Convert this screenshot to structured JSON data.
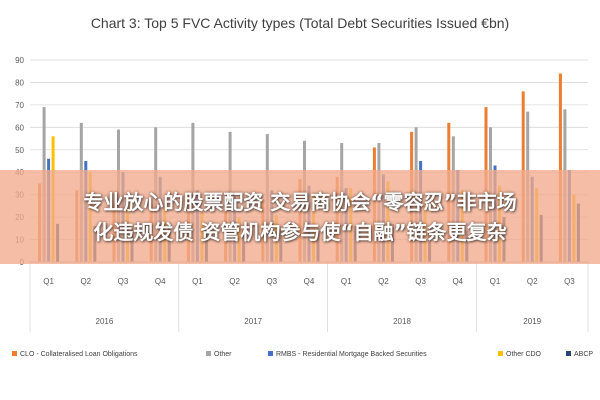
{
  "chart_data": {
    "type": "bar",
    "title": "Chart 3: Top 5 FVC Activity types (Total Debt Securities Issued €bn)",
    "ylim": [
      0,
      90
    ],
    "yticks": [
      "0",
      "10",
      "20",
      "30",
      "40",
      "50",
      "60",
      "70",
      "80",
      "90"
    ],
    "grid": true,
    "legend_position": "bottom",
    "categories": [
      "Q1",
      "Q2",
      "Q3",
      "Q4",
      "Q1",
      "Q2",
      "Q3",
      "Q4",
      "Q1",
      "Q2",
      "Q3",
      "Q4",
      "Q1",
      "Q2",
      "Q3"
    ],
    "years": [
      {
        "label": "2016",
        "count": 4
      },
      {
        "label": "2017",
        "count": 4
      },
      {
        "label": "2018",
        "count": 4
      },
      {
        "label": "2019",
        "count": 3
      }
    ],
    "series": [
      {
        "name": "CLO - Collateralised Loan Obligations",
        "color": "#ED7D31",
        "values": [
          35,
          32,
          26,
          26,
          29,
          25,
          28,
          37,
          38,
          51,
          58,
          62,
          69,
          76,
          84
        ]
      },
      {
        "name": "Other",
        "color": "#A5A5A5",
        "values": [
          69,
          62,
          59,
          60,
          62,
          58,
          57,
          54,
          53,
          53,
          60,
          56,
          60,
          67,
          68
        ]
      },
      {
        "name": "RMBS - Residential Mortgage Backed Securities",
        "color": "#4472C4",
        "values": [
          46,
          45,
          40,
          38,
          32,
          31,
          32,
          34,
          33,
          39,
          45,
          41,
          43,
          38,
          41
        ]
      },
      {
        "name": "Other CDO",
        "color": "#FFC000",
        "values": [
          56,
          40,
          29,
          25,
          22,
          20,
          21,
          30,
          33,
          36,
          26,
          32,
          34,
          33,
          30
        ]
      },
      {
        "name": "ABCP",
        "color": "#264478",
        "values": [
          17,
          16,
          15,
          15,
          14,
          14,
          14,
          15,
          16,
          17,
          16,
          14,
          20,
          21,
          26
        ]
      }
    ]
  },
  "banner": {
    "line1": "专业放心的股票配资 交易商协会“零容忍”非市场",
    "line2": "化违规发债 资管机构参与使“自融”链条更复杂"
  }
}
